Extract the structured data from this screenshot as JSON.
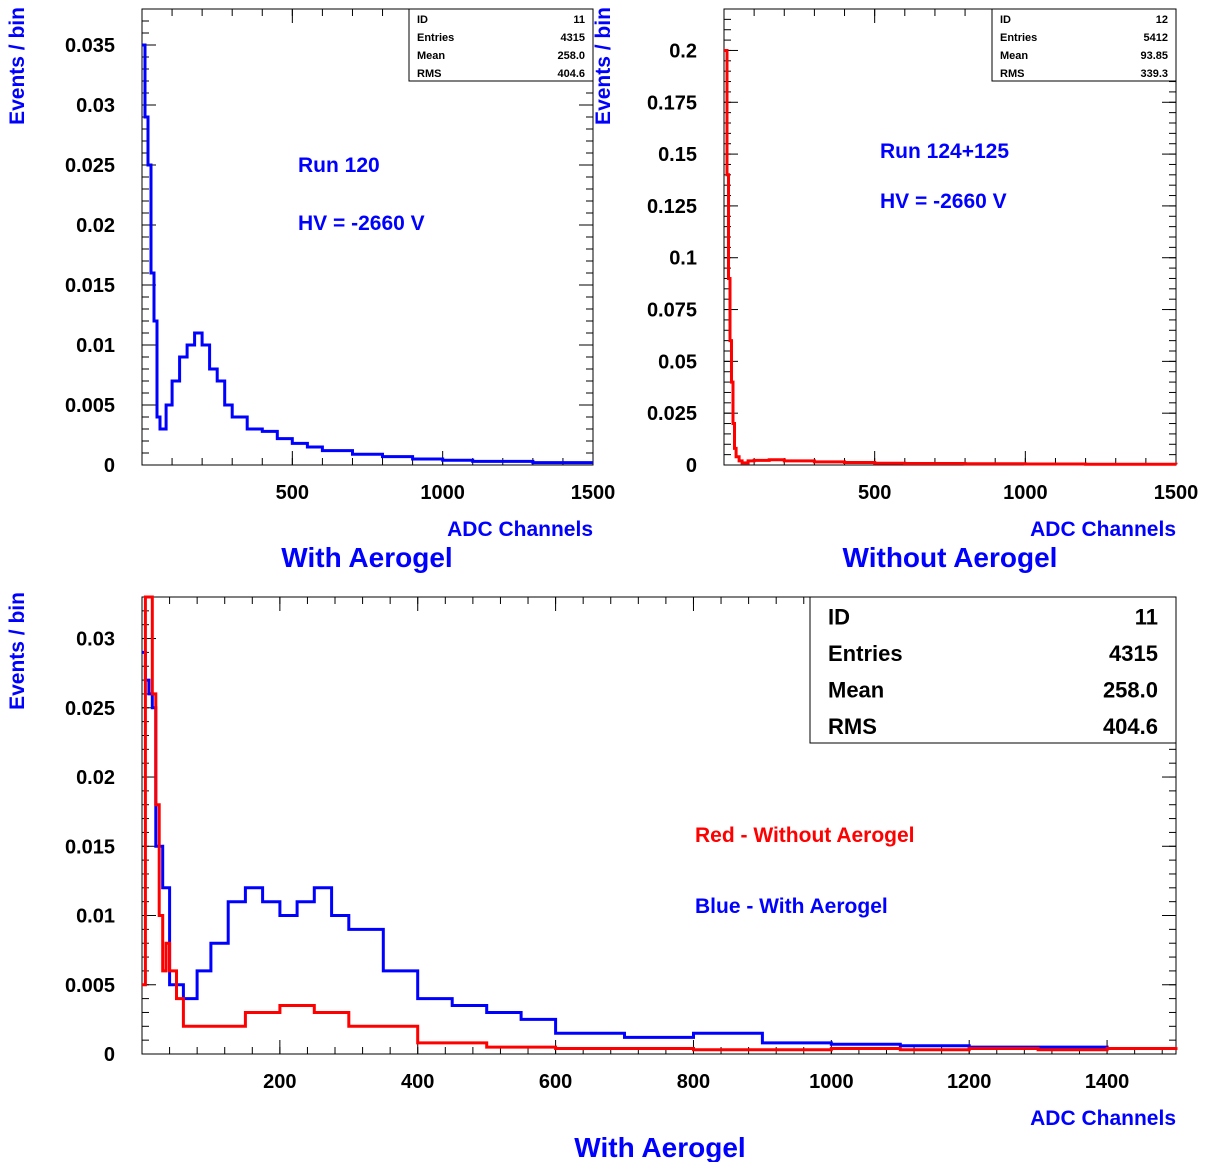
{
  "colors": {
    "blue": "#0000ff",
    "red": "#ff0000",
    "axis": "#000000"
  },
  "chart_data": [
    {
      "type": "line",
      "title": "With Aerogel",
      "xlabel": "ADC Channels",
      "ylabel": "Events / bin",
      "xlim": [
        0,
        1500
      ],
      "ylim": [
        0,
        0.038
      ],
      "x_ticks": [
        "500",
        "1000",
        "1500"
      ],
      "y_ticks": [
        "0",
        "0.005",
        "0.01",
        "0.015",
        "0.02",
        "0.025",
        "0.03",
        "0.035"
      ],
      "stats": [
        {
          "label": "ID",
          "value": "11"
        },
        {
          "label": "Entries",
          "value": "4315"
        },
        {
          "label": "Mean",
          "value": "258.0"
        },
        {
          "label": "RMS",
          "value": "404.6"
        }
      ],
      "annotations": [
        "Run 120",
        "HV = -2660 V"
      ],
      "series": [
        {
          "color": "#0000ff",
          "x": [
            0,
            10,
            20,
            30,
            40,
            50,
            60,
            80,
            100,
            125,
            150,
            175,
            200,
            225,
            250,
            275,
            300,
            350,
            400,
            450,
            500,
            550,
            600,
            700,
            800,
            900,
            1000,
            1100,
            1200,
            1300,
            1400,
            1500
          ],
          "y": [
            0.035,
            0.029,
            0.025,
            0.016,
            0.012,
            0.004,
            0.003,
            0.005,
            0.007,
            0.009,
            0.01,
            0.011,
            0.01,
            0.008,
            0.007,
            0.005,
            0.004,
            0.003,
            0.0028,
            0.0022,
            0.0018,
            0.0015,
            0.0012,
            0.0009,
            0.0007,
            0.0005,
            0.0004,
            0.0003,
            0.0003,
            0.0002,
            0.0002,
            0.0002
          ]
        }
      ]
    },
    {
      "type": "line",
      "title": "Without Aerogel",
      "xlabel": "ADC Channels",
      "ylabel": "Events / bin",
      "xlim": [
        0,
        1500
      ],
      "ylim": [
        0,
        0.22
      ],
      "x_ticks": [
        "500",
        "1000",
        "1500"
      ],
      "y_ticks": [
        "0",
        "0.025",
        "0.05",
        "0.075",
        "0.1",
        "0.125",
        "0.15",
        "0.175",
        "0.2"
      ],
      "stats": [
        {
          "label": "ID",
          "value": "12"
        },
        {
          "label": "Entries",
          "value": "5412"
        },
        {
          "label": "Mean",
          "value": "93.85"
        },
        {
          "label": "RMS",
          "value": "339.3"
        }
      ],
      "annotations": [
        "Run  124+125",
        "HV = -2660 V"
      ],
      "series": [
        {
          "color": "#ff0000",
          "x": [
            0,
            5,
            10,
            15,
            20,
            25,
            30,
            35,
            40,
            50,
            60,
            80,
            100,
            150,
            200,
            300,
            400,
            500,
            600,
            800,
            1000,
            1200,
            1400,
            1500
          ],
          "y": [
            0.2,
            0.2,
            0.14,
            0.09,
            0.06,
            0.04,
            0.02,
            0.008,
            0.004,
            0.002,
            0.001,
            0.002,
            0.0022,
            0.0025,
            0.002,
            0.0015,
            0.0012,
            0.0008,
            0.0007,
            0.0006,
            0.0005,
            0.0004,
            0.0004,
            0.0003
          ]
        }
      ]
    },
    {
      "type": "line",
      "title": "With Aerogel",
      "xlabel": "ADC Channels",
      "ylabel": "Events / bin",
      "xlim": [
        0,
        1500
      ],
      "ylim": [
        0,
        0.033
      ],
      "x_ticks": [
        "200",
        "400",
        "600",
        "800",
        "1000",
        "1200",
        "1400"
      ],
      "y_ticks": [
        "0",
        "0.005",
        "0.01",
        "0.015",
        "0.02",
        "0.025",
        "0.03"
      ],
      "stats": [
        {
          "label": "ID",
          "value": "11"
        },
        {
          "label": "Entries",
          "value": "4315"
        },
        {
          "label": "Mean",
          "value": "258.0"
        },
        {
          "label": "RMS",
          "value": "404.6"
        }
      ],
      "annotations": [
        "Red  - Without Aerogel",
        "Blue - With Aerogel"
      ],
      "series": [
        {
          "color": "#0000ff",
          "x": [
            0,
            5,
            10,
            15,
            20,
            30,
            40,
            60,
            80,
            100,
            125,
            150,
            175,
            200,
            225,
            250,
            275,
            300,
            350,
            400,
            450,
            500,
            550,
            600,
            700,
            800,
            900,
            1000,
            1100,
            1200,
            1300,
            1400,
            1500
          ],
          "y": [
            0.029,
            0.027,
            0.026,
            0.025,
            0.015,
            0.012,
            0.005,
            0.004,
            0.006,
            0.008,
            0.011,
            0.012,
            0.011,
            0.01,
            0.011,
            0.012,
            0.01,
            0.009,
            0.006,
            0.004,
            0.0035,
            0.003,
            0.0025,
            0.0015,
            0.0012,
            0.0015,
            0.0008,
            0.0007,
            0.0006,
            0.0005,
            0.0005,
            0.0004,
            0.0004
          ]
        },
        {
          "color": "#ff0000",
          "x": [
            0,
            5,
            10,
            15,
            20,
            25,
            30,
            35,
            40,
            50,
            60,
            80,
            100,
            150,
            200,
            250,
            300,
            350,
            400,
            500,
            600,
            700,
            800,
            900,
            1000,
            1100,
            1200,
            1300,
            1400,
            1500
          ],
          "y": [
            0.005,
            0.033,
            0.033,
            0.026,
            0.018,
            0.01,
            0.006,
            0.008,
            0.006,
            0.004,
            0.002,
            0.002,
            0.002,
            0.003,
            0.0035,
            0.003,
            0.002,
            0.002,
            0.0008,
            0.0005,
            0.0004,
            0.0004,
            0.0003,
            0.0003,
            0.0004,
            0.0003,
            0.0004,
            0.0003,
            0.0004,
            0.0005
          ]
        }
      ]
    }
  ]
}
